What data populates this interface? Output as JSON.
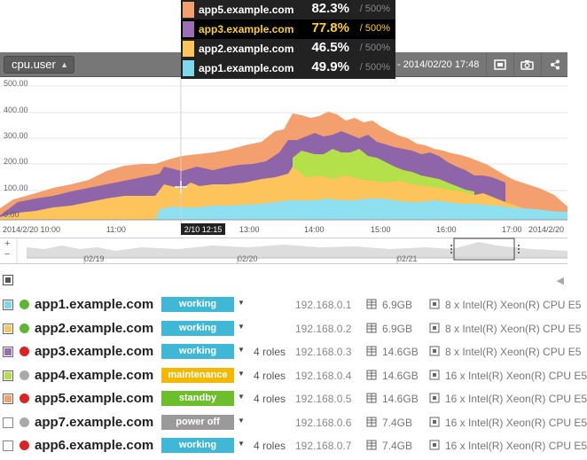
{
  "header": {
    "metric": "cpu.user",
    "range_text": "- 2014/02/20 17:48"
  },
  "tooltip": [
    {
      "host": "app5.example.com",
      "value": "82.3%",
      "max": "/ 500%",
      "color": "#f4a06e",
      "highlight": false
    },
    {
      "host": "app3.example.com",
      "value": "77.8%",
      "max": "/ 500%",
      "color": "#9b6db5",
      "highlight": true
    },
    {
      "host": "app2.example.com",
      "value": "46.5%",
      "max": "/ 500%",
      "color": "#fcc45a",
      "highlight": false
    },
    {
      "host": "app1.example.com",
      "value": "49.9%",
      "max": "/ 500%",
      "color": "#7cd8ea",
      "highlight": false
    }
  ],
  "chart": {
    "y_ticks": [
      "500.00",
      "400.00",
      "300.00",
      "200.00",
      "100.00",
      "0.00"
    ],
    "x_labels": [
      "2014/2/20 10:00",
      "11:00",
      "2/10 12:15",
      "13:00",
      "14:00",
      "15:00",
      "16:00",
      "17:00",
      "2014/2/20"
    ],
    "navigator_labels": [
      "02/19",
      "02/20",
      "02/21"
    ],
    "navigator_controls": [
      "+",
      "−"
    ]
  },
  "list_controls": {
    "collapse_icon": "◀"
  },
  "hosts": [
    {
      "name": "app1.example.com",
      "checked": true,
      "swatch": "#7cd8ea",
      "dot": "#5bb830",
      "status": "working",
      "status_color": "#3fb8d8",
      "roles": "",
      "ip": "192.168.0.1",
      "mem": "6.9GB",
      "cpu": "8 x Intel(R) Xeon(R) CPU E5"
    },
    {
      "name": "app2.example.com",
      "checked": true,
      "swatch": "#fcc45a",
      "dot": "#5bb830",
      "status": "working",
      "status_color": "#3fb8d8",
      "roles": "",
      "ip": "192.168.0.2",
      "mem": "6.9GB",
      "cpu": "8 x Intel(R) Xeon(R) CPU E5"
    },
    {
      "name": "app3.example.com",
      "checked": true,
      "swatch": "#9b6db5",
      "dot": "#dd2222",
      "status": "working",
      "status_color": "#3fb8d8",
      "roles": "4 roles",
      "ip": "192.168.0.3",
      "mem": "14.6GB",
      "cpu": "8 x Intel(R) Xeon(R) CPU E5"
    },
    {
      "name": "app4.example.com",
      "checked": true,
      "swatch": "#b4e04a",
      "dot": "#aaaaaa",
      "status": "maintenance",
      "status_color": "#f5b800",
      "roles": "4 roles",
      "ip": "192.168.0.4",
      "mem": "14.6GB",
      "cpu": "16 x Intel(R) Xeon(R) CPU E5"
    },
    {
      "name": "app5.example.com",
      "checked": true,
      "swatch": "#f4a06e",
      "dot": "#dd2222",
      "status": "standby",
      "status_color": "#6cbf2a",
      "roles": "4 roles",
      "ip": "192.168.0.5",
      "mem": "14.6GB",
      "cpu": "16 x Intel(R) Xeon(R) CPU E5"
    },
    {
      "name": "app7.example.com",
      "checked": false,
      "swatch": "",
      "dot": "#aaaaaa",
      "status": "power off",
      "status_color": "#9a9a9a",
      "roles": "",
      "ip": "192.168.0.6",
      "mem": "7.4GB",
      "cpu": "16 x Intel(R) Xeon(R) CPU E5"
    },
    {
      "name": "app6.example.com",
      "checked": false,
      "swatch": "",
      "dot": "#dd2222",
      "status": "working",
      "status_color": "#3fb8d8",
      "roles": "4 roles",
      "ip": "192.168.0.7",
      "mem": "7.4GB",
      "cpu": "16 x Intel(R) Xeon(R) CPU E5"
    }
  ]
}
